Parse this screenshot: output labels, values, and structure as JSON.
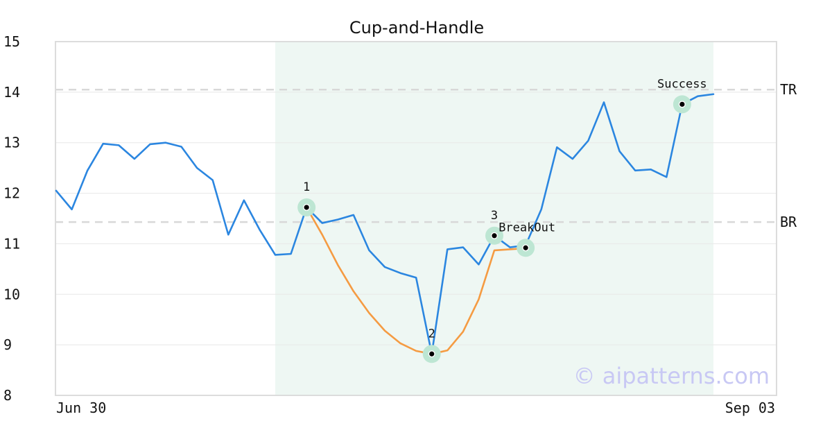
{
  "chart_data": {
    "type": "line",
    "title": "Cup-and-Handle",
    "xlabel": "",
    "ylabel": "",
    "ylim": [
      8,
      15
    ],
    "yticks": [
      "8",
      "9",
      "10",
      "11",
      "12",
      "13",
      "14",
      "15"
    ],
    "x_labels": [
      "Jun 30",
      "Sep 03"
    ],
    "grid": "horizontal",
    "series": [
      {
        "color": "#2b86e0",
        "values": [
          12.05,
          11.68,
          12.45,
          12.98,
          12.95,
          12.68,
          12.97,
          13.0,
          12.92,
          12.5,
          12.26,
          11.18,
          11.86,
          11.28,
          10.78,
          10.8,
          11.72,
          11.41,
          11.48,
          11.57,
          10.87,
          10.54,
          10.42,
          10.33,
          8.82,
          10.89,
          10.93,
          10.59,
          11.16,
          10.93,
          10.97,
          11.68,
          12.91,
          12.68,
          13.04,
          13.8,
          12.83,
          12.45,
          12.47,
          12.32,
          13.76,
          13.92,
          13.96
        ]
      },
      {
        "color": "#f59b42",
        "start_index": 16,
        "values": [
          11.72,
          11.18,
          10.58,
          10.06,
          9.63,
          9.28,
          9.03,
          8.88,
          8.82,
          8.89,
          9.26,
          9.9,
          10.87,
          10.89,
          10.91
        ]
      }
    ],
    "shaded_region": {
      "start_index": 14,
      "end_index": 42,
      "color": "#eef7f3"
    },
    "reference_lines": [
      {
        "label": "TR",
        "value": 14.05
      },
      {
        "label": "BR",
        "value": 11.43
      }
    ],
    "annotations": [
      {
        "label": "1",
        "index": 16,
        "value": 11.72
      },
      {
        "label": "2",
        "index": 24,
        "value": 8.82
      },
      {
        "label": "3",
        "index": 28,
        "value": 11.16
      },
      {
        "label": "BreakOut",
        "index": 30,
        "value": 10.92
      },
      {
        "label": "Success",
        "index": 40,
        "value": 13.76
      }
    ],
    "watermark": "© aipatterns.com"
  }
}
